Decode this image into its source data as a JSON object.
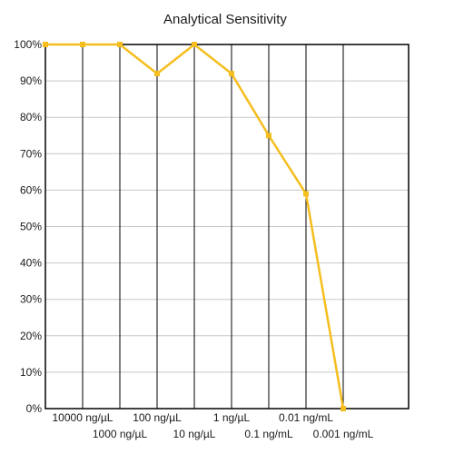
{
  "chart_data": {
    "type": "line",
    "title": "Analytical Sensitivity",
    "xlabel": "",
    "ylabel": "",
    "categories": [
      "10000 ng/µL",
      "1000 ng/µL",
      "100 ng/µL",
      "10 ng/µL",
      "1 ng/µL",
      "0.1 ng/mL",
      "0.01 ng/mL",
      "0.001 ng/mL"
    ],
    "values": [
      100,
      100,
      92,
      100,
      92,
      75,
      59,
      0
    ],
    "first_point_value": 100,
    "yticks": [
      "0%",
      "10%",
      "20%",
      "30%",
      "40%",
      "50%",
      "60%",
      "70%",
      "80%",
      "90%",
      "100%"
    ],
    "ylim": [
      0,
      100
    ],
    "grid": true,
    "legend": "none",
    "colors": {
      "line": "#F5BE1E",
      "grid": "#C8C8C8",
      "frame": "#000000"
    }
  }
}
